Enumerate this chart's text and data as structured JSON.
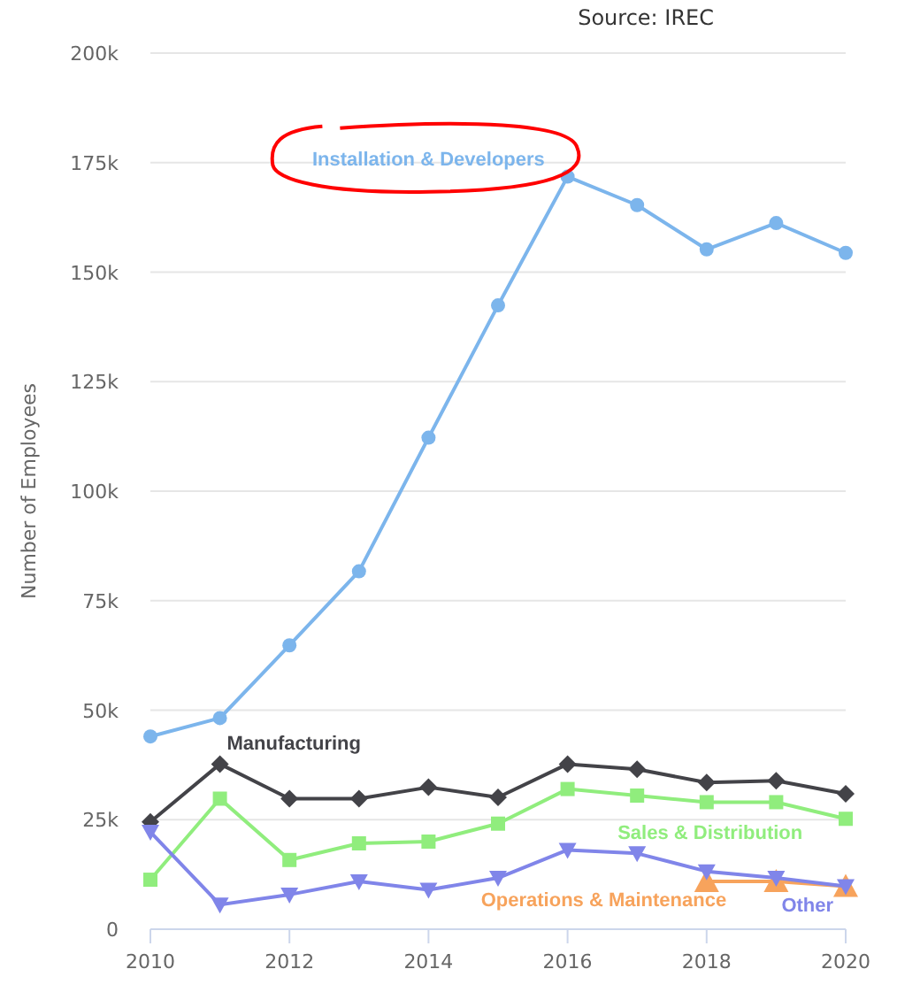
{
  "chart_data": {
    "type": "line",
    "ylabel": "Number of Employees",
    "annotations": [
      "Source: IREC"
    ],
    "x": [
      2010,
      2011,
      2012,
      2013,
      2014,
      2015,
      2016,
      2017,
      2018,
      2019,
      2020
    ],
    "xlim": [
      2010,
      2020
    ],
    "xticks": [
      2010,
      2012,
      2014,
      2016,
      2018,
      2020
    ],
    "ylim": [
      0,
      200000
    ],
    "yticks": [
      {
        "value": 0,
        "label": "0"
      },
      {
        "value": 25000,
        "label": "25k"
      },
      {
        "value": 50000,
        "label": "50k"
      },
      {
        "value": 75000,
        "label": "75k"
      },
      {
        "value": 100000,
        "label": "100k"
      },
      {
        "value": 125000,
        "label": "125k"
      },
      {
        "value": 150000,
        "label": "150k"
      },
      {
        "value": 175000,
        "label": "175k"
      },
      {
        "value": 200000,
        "label": "200k"
      }
    ],
    "grid": "y",
    "series": [
      {
        "name": "Installation & Developers",
        "color": "#7cb5ec",
        "marker": "circle",
        "values": [
          44000,
          48200,
          64800,
          81700,
          112200,
          142400,
          171800,
          165300,
          155200,
          161200,
          154400
        ]
      },
      {
        "name": "Manufacturing",
        "color": "#434348",
        "marker": "diamond",
        "values": [
          24500,
          37700,
          29800,
          29800,
          32400,
          30100,
          37700,
          36500,
          33500,
          33900,
          30900
        ]
      },
      {
        "name": "Sales & Distribution",
        "color": "#90ed7d",
        "marker": "square",
        "values": [
          11300,
          29800,
          15800,
          19600,
          20000,
          24100,
          32000,
          30500,
          29000,
          29000,
          25200
        ]
      },
      {
        "name": "Operations & Maintenance",
        "color": "#f7a35c",
        "marker": "triangle",
        "values": [
          null,
          null,
          null,
          null,
          null,
          null,
          null,
          null,
          10900,
          10900,
          9800
        ]
      },
      {
        "name": "Other",
        "color": "#8085e9",
        "marker": "triangle-down",
        "values": [
          22200,
          5600,
          7900,
          10900,
          9000,
          11700,
          18100,
          17300,
          13200,
          11700,
          9800
        ]
      }
    ]
  }
}
